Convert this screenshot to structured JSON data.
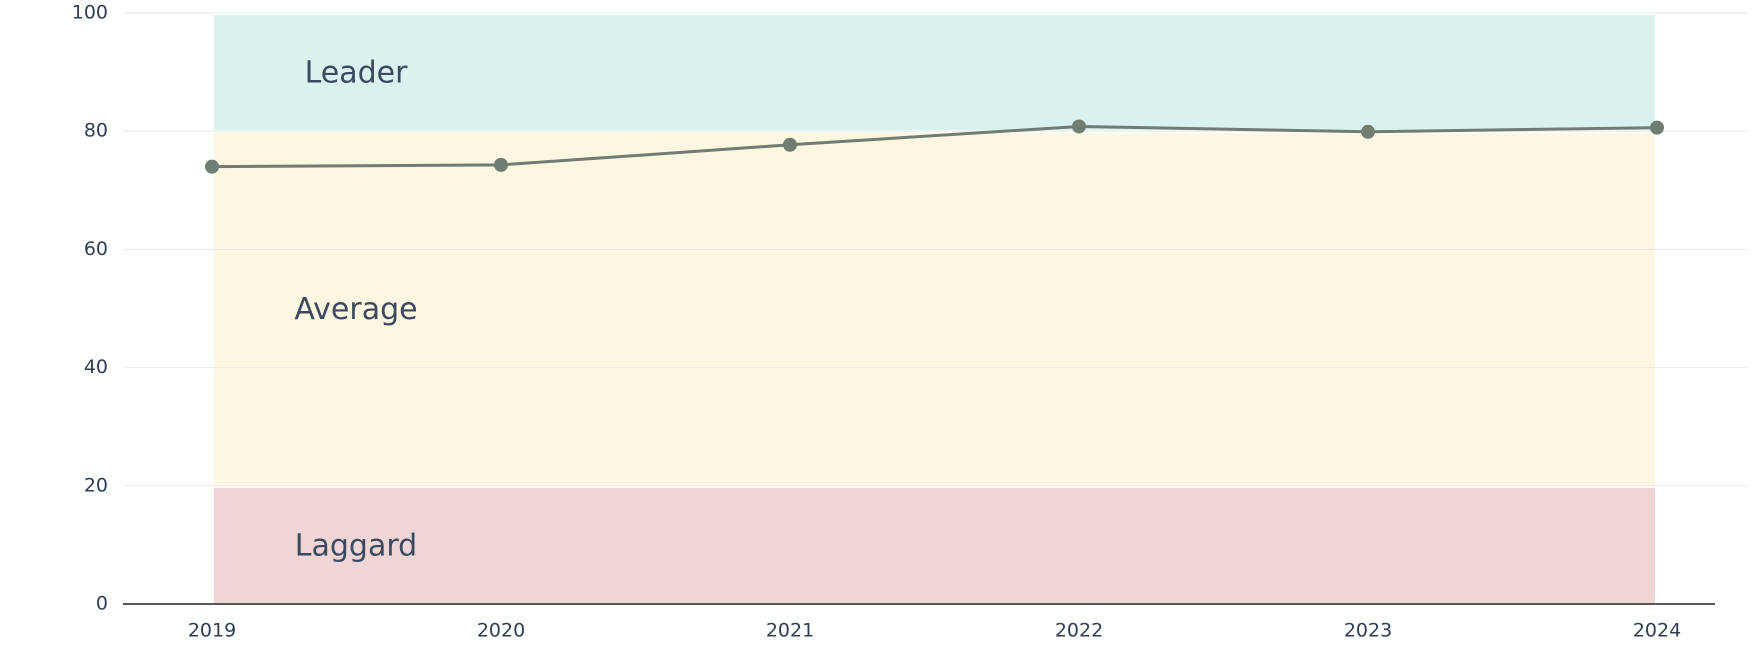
{
  "chart_data": {
    "type": "line",
    "categories": [
      "2019",
      "2020",
      "2021",
      "2022",
      "2023",
      "2024"
    ],
    "series": [
      {
        "color": "#6f7d72",
        "values": [
          74.0,
          74.3,
          77.7,
          80.8,
          79.9,
          80.6
        ]
      }
    ],
    "ylim": [
      0,
      100
    ],
    "yticks": [
      0,
      20,
      40,
      60,
      80,
      100
    ],
    "grid": true,
    "bands": [
      {
        "name": "Laggard",
        "from": 0,
        "to": 20,
        "color": "#f0d5d6"
      },
      {
        "name": "Average",
        "from": 20,
        "to": 80,
        "color": "#fdf6e0"
      },
      {
        "name": "Leader",
        "from": 80,
        "to": 100,
        "color": "#d9f2ef"
      }
    ]
  }
}
